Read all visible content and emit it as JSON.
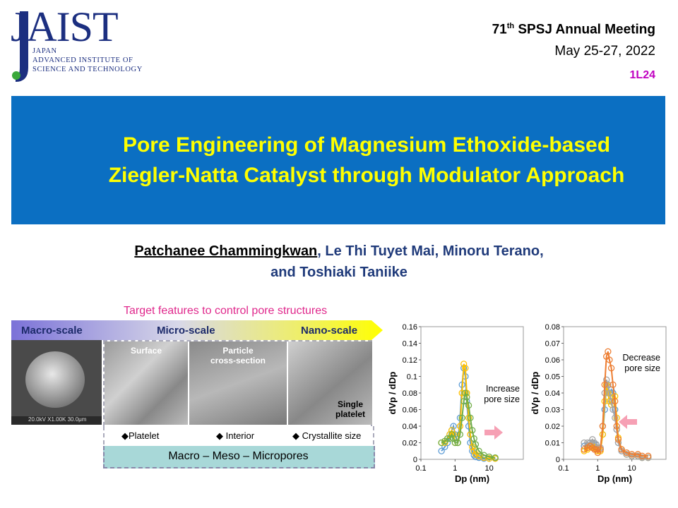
{
  "logo": {
    "text": "JAIST",
    "line1": "JAPAN",
    "line2": "ADVANCED INSTITUTE OF",
    "line3": "SCIENCE AND TECHNOLOGY"
  },
  "conference": {
    "number": "71",
    "ordinal": "th",
    "name_rest": " SPSJ Annual Meeting",
    "date": "May 25-27, 2022",
    "session": "1L24"
  },
  "title": "Pore Engineering of Magnesium Ethoxide-based Ziegler-Natta Catalyst through Modulator Approach",
  "authors": {
    "presenter": "Patchanee Chammingkwan",
    "line1_rest": ", Le Thi Tuyet Mai, Minoru Terano,",
    "line2": "and Toshiaki Taniike"
  },
  "features": {
    "title": "Target features to control pore structures",
    "scales": [
      "Macro-scale",
      "Micro-scale",
      "Nano-scale"
    ],
    "panels": {
      "surface": "Surface",
      "cross_section_1": "Particle",
      "cross_section_2": "cross-section",
      "platelet_1": "Single",
      "platelet_2": "platelet"
    },
    "sem_caption": "20.0kV X1.00K 30.0μm",
    "items": [
      "◆Platelet",
      "◆ Interior",
      "◆ Crystallite size"
    ],
    "pores": "Macro – Meso – Micropores"
  },
  "colors": {
    "banner": "#0b6fc2",
    "title_text": "#ffff00",
    "session": "#c000c0",
    "features_title": "#e0288c",
    "arrow": "#f6a0b4"
  },
  "chart_data": [
    {
      "type": "line",
      "ylabel": "dVp / dDp",
      "xlabel": "Dp (nm)",
      "xscale": "log",
      "xlim": [
        0.1,
        100
      ],
      "ylim": [
        0,
        0.16
      ],
      "yticks": [
        "0",
        "0.02",
        "0.04",
        "0.06",
        "0.08",
        "0.1",
        "0.12",
        "0.14",
        "0.16"
      ],
      "xticks": [
        "0.1",
        "1",
        "10"
      ],
      "annotation": [
        "Increase",
        "pore size"
      ],
      "annotation_arrow": "right",
      "series": [
        {
          "color": "#5b9bd5",
          "x": [
            0.4,
            0.5,
            0.6,
            0.7,
            0.8,
            0.9,
            1.0,
            1.2,
            1.4,
            1.6,
            1.8,
            2.0,
            2.2,
            2.5,
            2.8,
            3.2,
            3.6,
            4.0,
            5,
            7,
            10,
            15
          ],
          "y": [
            0.01,
            0.015,
            0.02,
            0.03,
            0.035,
            0.04,
            0.03,
            0.02,
            0.05,
            0.09,
            0.11,
            0.1,
            0.07,
            0.04,
            0.02,
            0.01,
            0.005,
            0.003,
            0.002,
            0.001,
            0.001,
            0.001
          ]
        },
        {
          "color": "#ffc000",
          "x": [
            0.4,
            0.5,
            0.6,
            0.7,
            0.8,
            0.9,
            1.0,
            1.2,
            1.4,
            1.6,
            1.8,
            2.0,
            2.2,
            2.5,
            2.8,
            3.2,
            3.6,
            4.0,
            5,
            7,
            10,
            15
          ],
          "y": [
            0.02,
            0.02,
            0.025,
            0.03,
            0.035,
            0.03,
            0.02,
            0.02,
            0.04,
            0.08,
            0.115,
            0.11,
            0.08,
            0.05,
            0.03,
            0.015,
            0.01,
            0.006,
            0.004,
            0.002,
            0.001,
            0.001
          ]
        },
        {
          "color": "#70ad47",
          "x": [
            0.4,
            0.5,
            0.6,
            0.7,
            0.8,
            0.9,
            1.0,
            1.2,
            1.4,
            1.6,
            1.8,
            2.0,
            2.2,
            2.5,
            2.8,
            3.2,
            3.6,
            4.0,
            5,
            7,
            10,
            15
          ],
          "y": [
            0.02,
            0.022,
            0.025,
            0.025,
            0.03,
            0.025,
            0.02,
            0.02,
            0.03,
            0.05,
            0.07,
            0.08,
            0.075,
            0.065,
            0.05,
            0.035,
            0.025,
            0.018,
            0.01,
            0.005,
            0.003,
            0.002
          ]
        }
      ]
    },
    {
      "type": "line",
      "ylabel": "dVp / dDp",
      "xlabel": "Dp (nm)",
      "xscale": "log",
      "xlim": [
        0.1,
        100
      ],
      "ylim": [
        0,
        0.08
      ],
      "yticks": [
        "0",
        "0.01",
        "0.02",
        "0.03",
        "0.04",
        "0.05",
        "0.06",
        "0.07",
        "0.08"
      ],
      "xticks": [
        "0.1",
        "1",
        "10"
      ],
      "annotation": [
        "Decrease",
        "pore size"
      ],
      "annotation_arrow": "left",
      "series": [
        {
          "color": "#5b9bd5",
          "x": [
            0.4,
            0.5,
            0.6,
            0.7,
            0.8,
            0.9,
            1.0,
            1.2,
            1.4,
            1.6,
            1.8,
            2.0,
            2.2,
            2.5,
            2.8,
            3.2,
            3.6,
            4.0,
            5,
            7,
            10,
            15,
            20,
            30
          ],
          "y": [
            0.008,
            0.008,
            0.01,
            0.01,
            0.009,
            0.009,
            0.006,
            0.006,
            0.015,
            0.03,
            0.045,
            0.045,
            0.04,
            0.042,
            0.04,
            0.03,
            0.018,
            0.01,
            0.005,
            0.003,
            0.002,
            0.002,
            0.001,
            0.001
          ]
        },
        {
          "color": "#ffc000",
          "x": [
            0.4,
            0.5,
            0.6,
            0.7,
            0.8,
            0.9,
            1.0,
            1.2,
            1.4,
            1.6,
            1.8,
            2.0,
            2.2,
            2.5,
            2.8,
            3.2,
            3.6,
            4.0,
            5,
            7,
            10,
            15,
            20,
            30
          ],
          "y": [
            0.005,
            0.006,
            0.008,
            0.008,
            0.007,
            0.007,
            0.005,
            0.005,
            0.015,
            0.035,
            0.045,
            0.04,
            0.035,
            0.033,
            0.037,
            0.038,
            0.025,
            0.013,
            0.006,
            0.003,
            0.002,
            0.002,
            0.001,
            0.001
          ]
        },
        {
          "color": "#a5a5a5",
          "x": [
            0.4,
            0.5,
            0.6,
            0.7,
            0.8,
            0.9,
            1.0,
            1.2,
            1.4,
            1.6,
            1.8,
            2.0,
            2.2,
            2.5,
            2.8,
            3.2,
            3.6,
            4.0,
            5,
            7,
            10,
            15,
            20,
            30
          ],
          "y": [
            0.01,
            0.01,
            0.01,
            0.012,
            0.01,
            0.009,
            0.007,
            0.007,
            0.02,
            0.04,
            0.048,
            0.045,
            0.04,
            0.035,
            0.03,
            0.025,
            0.018,
            0.01,
            0.005,
            0.003,
            0.002,
            0.002,
            0.001,
            0.001
          ]
        },
        {
          "color": "#ed7d31",
          "x": [
            0.4,
            0.5,
            0.6,
            0.7,
            0.8,
            0.9,
            1.0,
            1.2,
            1.4,
            1.6,
            1.8,
            2.0,
            2.2,
            2.5,
            2.8,
            3.2,
            3.6,
            4.0,
            5,
            7,
            10,
            15,
            20,
            30
          ],
          "y": [
            0.006,
            0.007,
            0.008,
            0.007,
            0.006,
            0.006,
            0.004,
            0.006,
            0.02,
            0.045,
            0.062,
            0.065,
            0.06,
            0.055,
            0.045,
            0.035,
            0.02,
            0.012,
            0.006,
            0.004,
            0.003,
            0.003,
            0.002,
            0.002
          ]
        }
      ]
    }
  ]
}
